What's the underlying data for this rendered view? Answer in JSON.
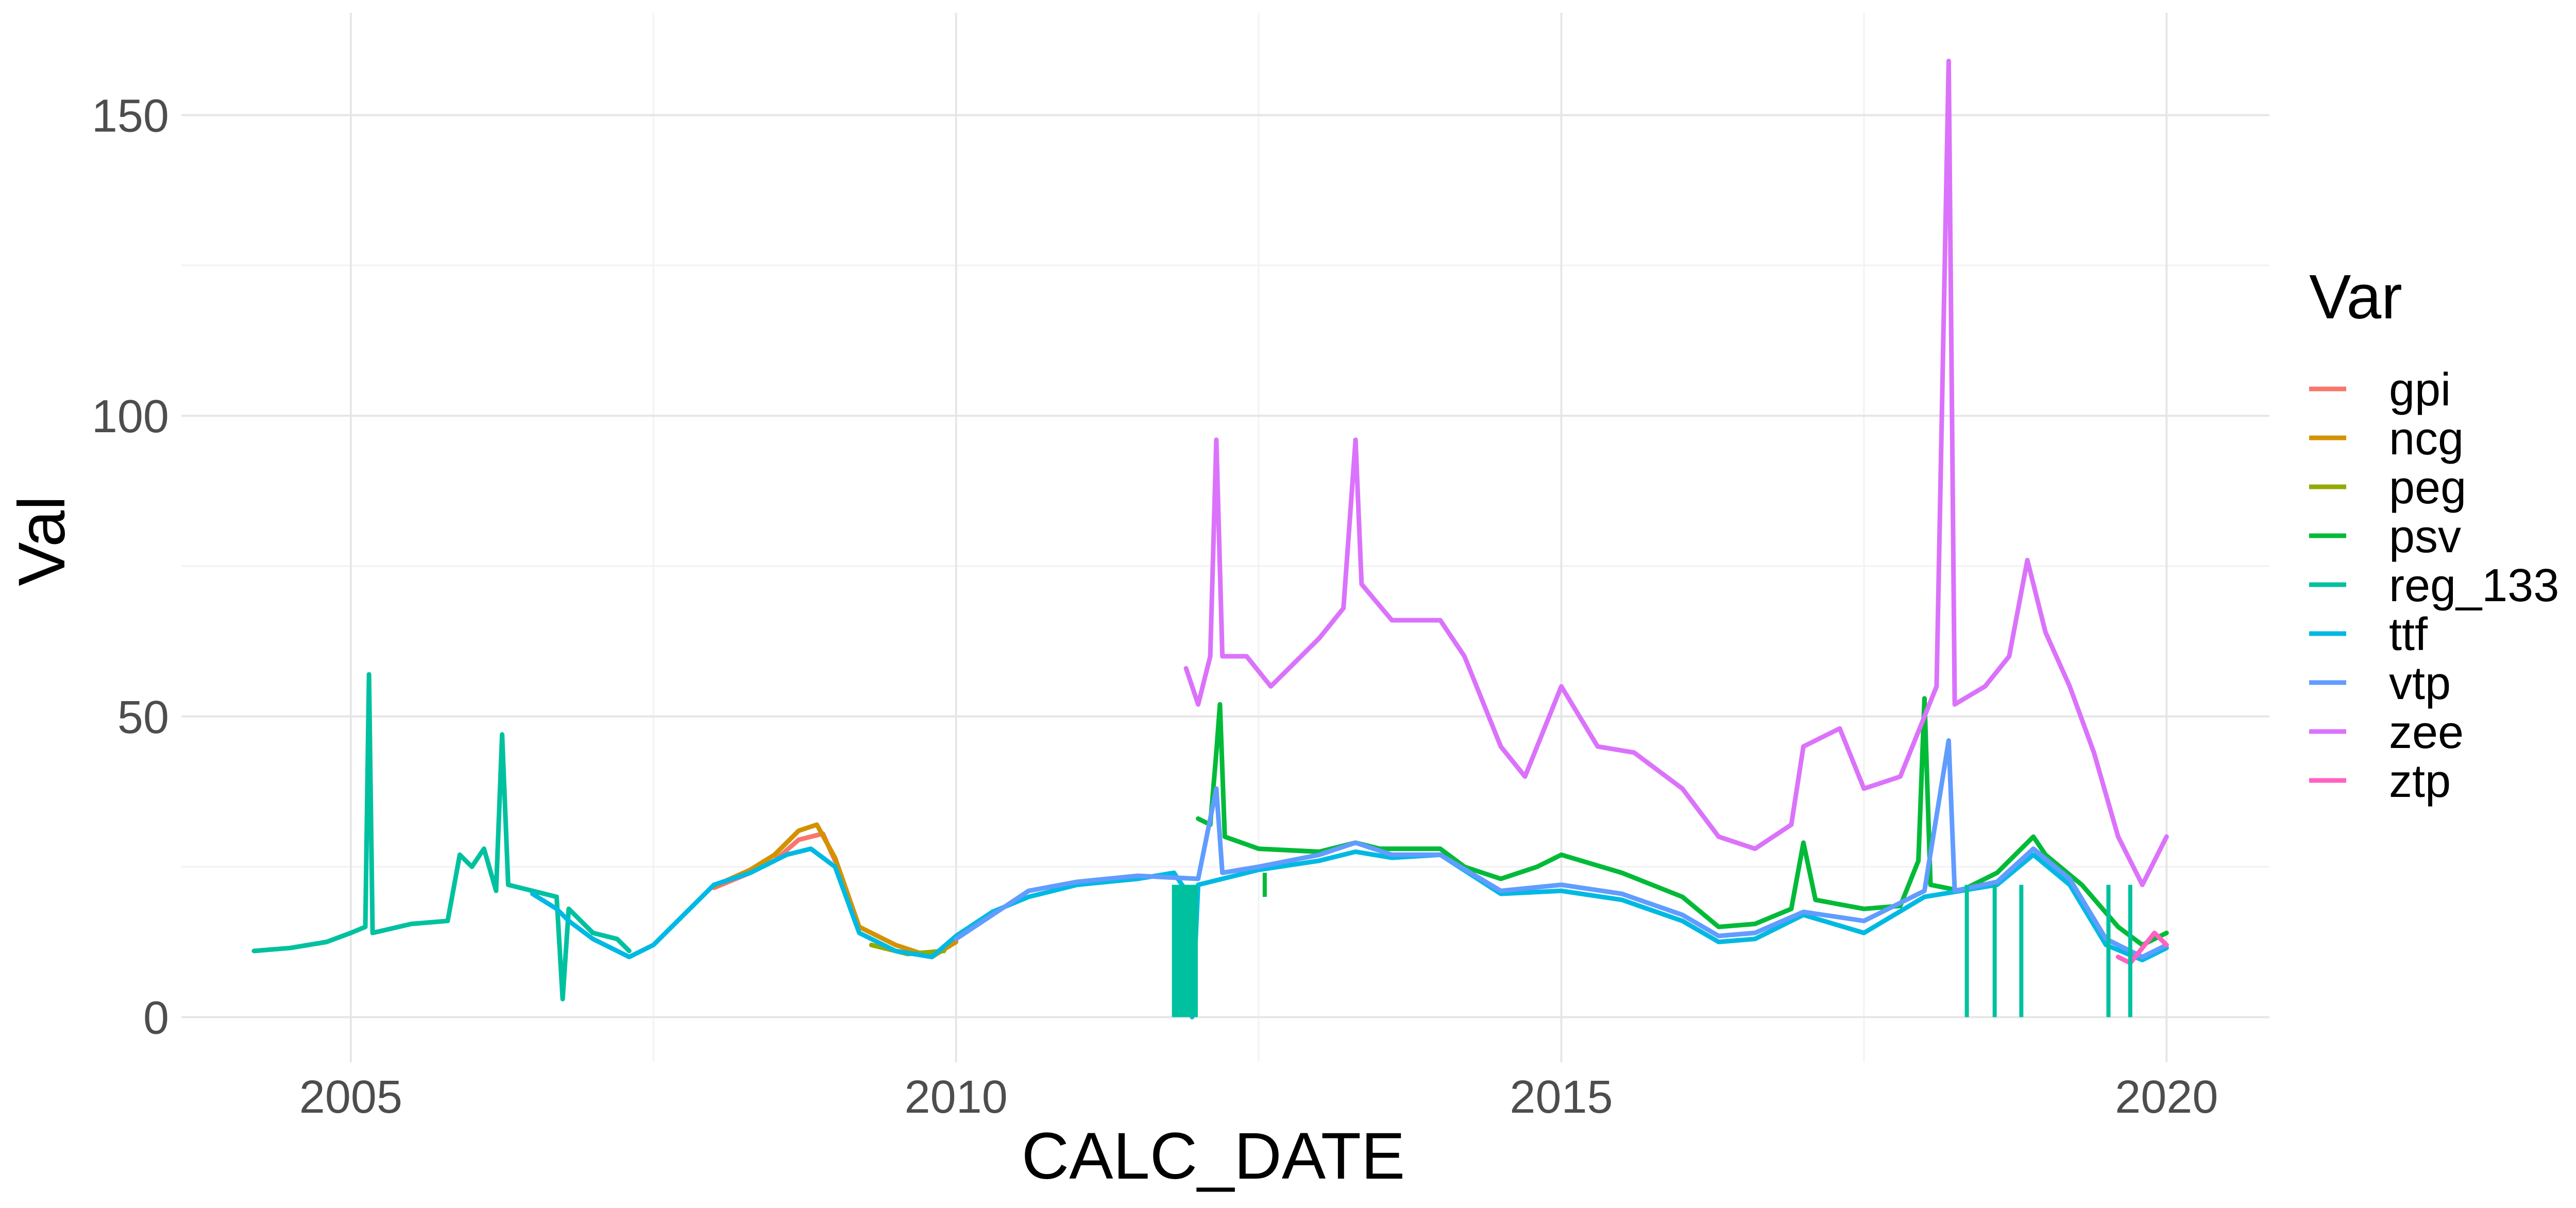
{
  "chart_data": {
    "type": "line",
    "title": "",
    "xlabel": "CALC_DATE",
    "ylabel": "Val",
    "xlim": [
      2003.6,
      2020.85
    ],
    "ylim": [
      -7.5,
      167
    ],
    "x_ticks": [
      {
        "value": 2005,
        "label": "2005"
      },
      {
        "value": 2010,
        "label": "2010"
      },
      {
        "value": 2015,
        "label": "2015"
      },
      {
        "value": 2020,
        "label": "2020"
      }
    ],
    "y_ticks": [
      {
        "value": 0,
        "label": "0"
      },
      {
        "value": 50,
        "label": "50"
      },
      {
        "value": 100,
        "label": "100"
      },
      {
        "value": 150,
        "label": "150"
      }
    ],
    "grid": true,
    "legend": {
      "title": "Var",
      "position": "right"
    },
    "series": [
      {
        "name": "gpi",
        "color": "#F8766D",
        "points": [
          [
            2008.0,
            21.5
          ],
          [
            2008.3,
            24.0
          ],
          [
            2008.5,
            26.0
          ],
          [
            2008.7,
            29.5
          ],
          [
            2008.9,
            30.5
          ],
          [
            2009.0,
            26.0
          ]
        ]
      },
      {
        "name": "ncg",
        "color": "#D39200",
        "points": [
          [
            2008.0,
            21.8
          ],
          [
            2008.3,
            24.5
          ],
          [
            2008.5,
            27.0
          ],
          [
            2008.7,
            31.0
          ],
          [
            2008.85,
            32.0
          ],
          [
            2009.0,
            26.5
          ],
          [
            2009.2,
            15.0
          ],
          [
            2009.5,
            12.0
          ],
          [
            2009.8,
            10.0
          ],
          [
            2010.0,
            12.5
          ]
        ]
      },
      {
        "name": "peg",
        "color": "#93AA00",
        "points": [
          [
            2009.3,
            12.0
          ],
          [
            2009.6,
            10.5
          ],
          [
            2009.9,
            11.0
          ]
        ]
      },
      {
        "name": "psv",
        "color": "#00BA38",
        "points": [
          [
            2012.0,
            33.0
          ],
          [
            2012.1,
            32.0
          ],
          [
            2012.15,
            44.0
          ],
          [
            2012.18,
            52.0
          ],
          [
            2012.22,
            30.0
          ],
          [
            2012.5,
            28.0
          ],
          [
            2013.0,
            27.5
          ],
          [
            2013.3,
            29.0
          ],
          [
            2013.5,
            28.0
          ],
          [
            2014.0,
            28.0
          ],
          [
            2014.2,
            25.0
          ],
          [
            2014.5,
            23.0
          ],
          [
            2014.8,
            25.0
          ],
          [
            2015.0,
            27.0
          ],
          [
            2015.5,
            24.0
          ],
          [
            2016.0,
            20.0
          ],
          [
            2016.3,
            15.0
          ],
          [
            2016.6,
            15.5
          ],
          [
            2016.9,
            18.0
          ],
          [
            2017.0,
            29.0
          ],
          [
            2017.1,
            19.5
          ],
          [
            2017.5,
            18.0
          ],
          [
            2017.8,
            18.5
          ],
          [
            2017.95,
            26.0
          ],
          [
            2018.0,
            53.0
          ],
          [
            2018.05,
            22.0
          ],
          [
            2018.3,
            21.0
          ],
          [
            2018.6,
            24.0
          ],
          [
            2018.9,
            30.0
          ],
          [
            2019.0,
            27.0
          ],
          [
            2019.3,
            22.0
          ],
          [
            2019.6,
            15.0
          ],
          [
            2019.8,
            12.0
          ],
          [
            2020.0,
            14.0
          ]
        ]
      },
      {
        "name": "reg_133",
        "color": "#00C19F",
        "points": [
          [
            2004.2,
            11.0
          ],
          [
            2004.5,
            11.5
          ],
          [
            2004.8,
            12.5
          ],
          [
            2005.0,
            14.0
          ],
          [
            2005.12,
            15.0
          ],
          [
            2005.15,
            57.0
          ],
          [
            2005.18,
            14.0
          ],
          [
            2005.5,
            15.5
          ],
          [
            2005.8,
            16.0
          ],
          [
            2005.9,
            27.0
          ],
          [
            2006.0,
            25.0
          ],
          [
            2006.1,
            28.0
          ],
          [
            2006.2,
            21.0
          ],
          [
            2006.25,
            47.0
          ],
          [
            2006.3,
            22.0
          ],
          [
            2006.5,
            21.0
          ],
          [
            2006.7,
            20.0
          ],
          [
            2006.75,
            3.0
          ],
          [
            2006.8,
            18.0
          ],
          [
            2007.0,
            14.0
          ],
          [
            2007.2,
            13.0
          ],
          [
            2007.3,
            11.0
          ]
        ]
      },
      {
        "name": "ttf",
        "color": "#00B9E3",
        "points": [
          [
            2006.5,
            20.5
          ],
          [
            2006.7,
            18.0
          ],
          [
            2006.8,
            16.0
          ],
          [
            2007.0,
            13.0
          ],
          [
            2007.3,
            10.0
          ],
          [
            2007.5,
            12.0
          ],
          [
            2007.8,
            18.0
          ],
          [
            2008.0,
            22.0
          ],
          [
            2008.3,
            24.0
          ],
          [
            2008.6,
            27.0
          ],
          [
            2008.8,
            28.0
          ],
          [
            2009.0,
            25.0
          ],
          [
            2009.2,
            14.0
          ],
          [
            2009.5,
            11.0
          ],
          [
            2009.8,
            10.0
          ],
          [
            2010.0,
            13.5
          ],
          [
            2010.3,
            17.5
          ],
          [
            2010.6,
            20.0
          ],
          [
            2011.0,
            22.0
          ],
          [
            2011.5,
            23.0
          ],
          [
            2011.8,
            24.0
          ],
          [
            2011.9,
            21.0
          ],
          [
            2011.95,
            0.0
          ],
          [
            2012.0,
            22.0
          ],
          [
            2012.5,
            24.5
          ],
          [
            2013.0,
            26.0
          ],
          [
            2013.3,
            27.5
          ],
          [
            2013.6,
            26.5
          ],
          [
            2014.0,
            27.0
          ],
          [
            2014.5,
            20.5
          ],
          [
            2015.0,
            21.0
          ],
          [
            2015.5,
            19.5
          ],
          [
            2016.0,
            16.0
          ],
          [
            2016.3,
            12.5
          ],
          [
            2016.6,
            13.0
          ],
          [
            2017.0,
            17.0
          ],
          [
            2017.5,
            14.0
          ],
          [
            2018.0,
            20.0
          ],
          [
            2018.3,
            21.0
          ],
          [
            2018.6,
            22.0
          ],
          [
            2018.9,
            27.0
          ],
          [
            2019.2,
            22.0
          ],
          [
            2019.5,
            12.0
          ],
          [
            2019.8,
            9.5
          ],
          [
            2020.0,
            11.5
          ]
        ]
      },
      {
        "name": "vtp",
        "color": "#619CFF",
        "points": [
          [
            2010.0,
            13.0
          ],
          [
            2010.3,
            17.0
          ],
          [
            2010.6,
            21.0
          ],
          [
            2011.0,
            22.5
          ],
          [
            2011.5,
            23.5
          ],
          [
            2012.0,
            23.0
          ],
          [
            2012.15,
            38.0
          ],
          [
            2012.2,
            24.0
          ],
          [
            2012.5,
            25.0
          ],
          [
            2013.0,
            27.0
          ],
          [
            2013.3,
            29.0
          ],
          [
            2013.6,
            27.0
          ],
          [
            2014.0,
            27.0
          ],
          [
            2014.5,
            21.0
          ],
          [
            2015.0,
            22.0
          ],
          [
            2015.5,
            20.5
          ],
          [
            2016.0,
            17.0
          ],
          [
            2016.3,
            13.5
          ],
          [
            2016.6,
            14.0
          ],
          [
            2017.0,
            17.5
          ],
          [
            2017.5,
            16.0
          ],
          [
            2018.0,
            21.0
          ],
          [
            2018.2,
            46.0
          ],
          [
            2018.25,
            21.0
          ],
          [
            2018.6,
            22.5
          ],
          [
            2018.9,
            28.0
          ],
          [
            2019.2,
            23.0
          ],
          [
            2019.5,
            13.0
          ],
          [
            2019.8,
            10.0
          ],
          [
            2020.0,
            12.0
          ]
        ]
      },
      {
        "name": "zee",
        "color": "#DB72FB",
        "points": [
          [
            2011.9,
            58.0
          ],
          [
            2012.0,
            52.0
          ],
          [
            2012.1,
            60.0
          ],
          [
            2012.15,
            96.0
          ],
          [
            2012.2,
            60.0
          ],
          [
            2012.4,
            60.0
          ],
          [
            2012.6,
            55.0
          ],
          [
            2013.0,
            63.0
          ],
          [
            2013.2,
            68.0
          ],
          [
            2013.3,
            96.0
          ],
          [
            2013.35,
            72.0
          ],
          [
            2013.6,
            66.0
          ],
          [
            2014.0,
            66.0
          ],
          [
            2014.2,
            60.0
          ],
          [
            2014.5,
            45.0
          ],
          [
            2014.7,
            40.0
          ],
          [
            2015.0,
            55.0
          ],
          [
            2015.3,
            45.0
          ],
          [
            2015.6,
            44.0
          ],
          [
            2016.0,
            38.0
          ],
          [
            2016.3,
            30.0
          ],
          [
            2016.6,
            28.0
          ],
          [
            2016.9,
            32.0
          ],
          [
            2017.0,
            45.0
          ],
          [
            2017.3,
            48.0
          ],
          [
            2017.5,
            38.0
          ],
          [
            2017.8,
            40.0
          ],
          [
            2018.0,
            50.0
          ],
          [
            2018.1,
            55.0
          ],
          [
            2018.2,
            159.0
          ],
          [
            2018.25,
            52.0
          ],
          [
            2018.5,
            55.0
          ],
          [
            2018.7,
            60.0
          ],
          [
            2018.85,
            76.0
          ],
          [
            2019.0,
            64.0
          ],
          [
            2019.2,
            55.0
          ],
          [
            2019.4,
            44.0
          ],
          [
            2019.6,
            30.0
          ],
          [
            2019.8,
            22.0
          ],
          [
            2020.0,
            30.0
          ]
        ]
      },
      {
        "name": "ztp",
        "color": "#FF61C3",
        "points": [
          [
            2019.6,
            10.0
          ],
          [
            2019.7,
            9.0
          ],
          [
            2019.8,
            11.5
          ],
          [
            2019.9,
            14.0
          ],
          [
            2020.0,
            12.0
          ]
        ]
      }
    ],
    "dropouts": [
      {
        "series": "reg_133",
        "x": [
          2011.8,
          2011.82,
          2011.84,
          2011.86,
          2011.88,
          2011.9,
          2011.92,
          2011.94,
          2011.96,
          2011.98
        ]
      },
      {
        "series": "psv",
        "x": [
          2012.55
        ]
      },
      {
        "series": "reg_133",
        "x": [
          2018.35,
          2018.58,
          2018.8,
          2019.52,
          2019.7
        ]
      }
    ]
  }
}
